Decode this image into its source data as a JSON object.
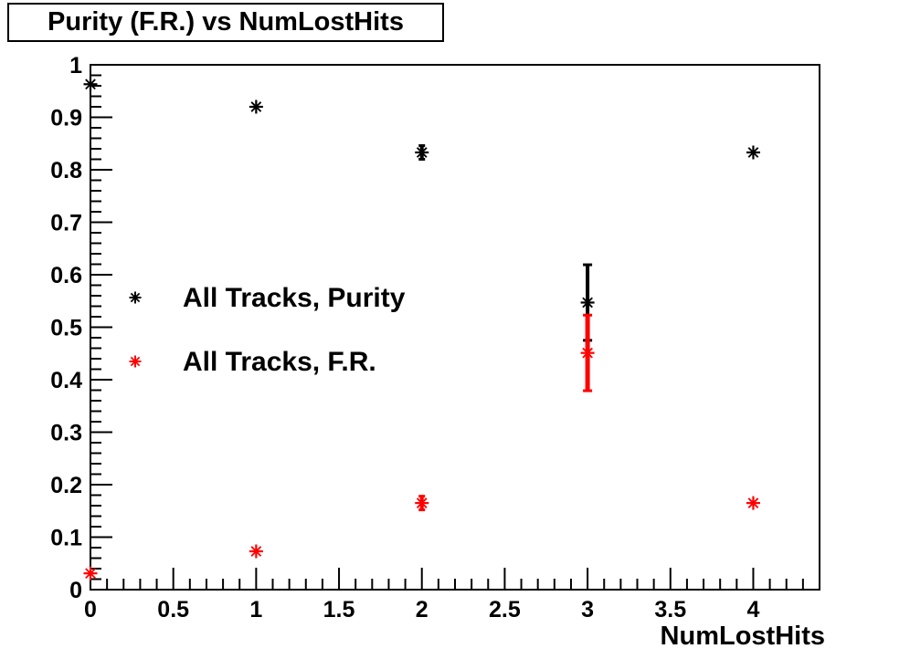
{
  "window": {
    "background": "#ffffff"
  },
  "title_box": {
    "text": "Purity (F.R.) vs NumLostHits"
  },
  "colors": {
    "purity_series": "#000000",
    "fr_series": "#ff0000",
    "frame": "#000000",
    "background": "#ffffff"
  },
  "chart_data": {
    "type": "scatter",
    "title": "Purity (F.R.) vs NumLostHits",
    "xlabel": "NumLostHits",
    "ylabel": "",
    "xlim": [
      0,
      4.4
    ],
    "ylim": [
      0,
      1
    ],
    "grid": false,
    "marker_style": "asterisk-star",
    "x_major_ticks": [
      0,
      0.5,
      1,
      1.5,
      2,
      2.5,
      3,
      3.5,
      4
    ],
    "x_tick_labels": [
      "0",
      "0.5",
      "1",
      "1.5",
      "2",
      "2.5",
      "3",
      "3.5",
      "4"
    ],
    "x_minor_step": 0.1,
    "y_major_ticks": [
      0,
      0.1,
      0.2,
      0.3,
      0.4,
      0.5,
      0.6,
      0.7,
      0.8,
      0.9,
      1
    ],
    "y_tick_labels": [
      "0",
      "0.1",
      "0.2",
      "0.3",
      "0.4",
      "0.5",
      "0.6",
      "0.7",
      "0.8",
      "0.9",
      "1"
    ],
    "y_minor_step": 0.02,
    "legend": {
      "position": "inside-upper-left",
      "entries": [
        {
          "label": "All Tracks, Purity",
          "color": "#000000",
          "marker": "asterisk-star"
        },
        {
          "label": "All Tracks, F.R.",
          "color": "#ff0000",
          "marker": "asterisk-star"
        }
      ]
    },
    "series": [
      {
        "name": "All Tracks, Purity",
        "color": "#000000",
        "points": [
          {
            "x": 0,
            "y": 0.963
          },
          {
            "x": 1,
            "y": 0.92
          },
          {
            "x": 2,
            "y": 0.833,
            "yerr": 0.013
          },
          {
            "x": 3,
            "y": 0.547,
            "yerr": 0.072
          },
          {
            "x": 4,
            "y": 0.833
          }
        ]
      },
      {
        "name": "All Tracks, F.R.",
        "color": "#ff0000",
        "points": [
          {
            "x": 0,
            "y": 0.031
          },
          {
            "x": 1,
            "y": 0.073
          },
          {
            "x": 2,
            "y": 0.165,
            "yerr": 0.013
          },
          {
            "x": 3,
            "y": 0.451,
            "yerr": 0.072
          },
          {
            "x": 4,
            "y": 0.165
          }
        ]
      }
    ]
  }
}
